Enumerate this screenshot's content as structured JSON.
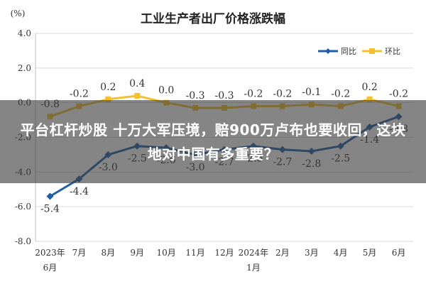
{
  "chart_data": {
    "type": "line",
    "title": "工业生产者出厂价格涨跌幅",
    "unit_label": "(%)",
    "categories": [
      "2023年6月",
      "7月",
      "8月",
      "9月",
      "10月",
      "11月",
      "12月",
      "2024年1月",
      "2月",
      "3月",
      "4月",
      "5月",
      "6月"
    ],
    "y_ticks": [
      "4.0",
      "2.0",
      "0.0",
      "-2.0",
      "-4.0",
      "-6.0",
      "-8.0"
    ],
    "ylim": [
      -8,
      4
    ],
    "grid": true,
    "legend_position": "top-right",
    "series": [
      {
        "name": "同比",
        "color": "#1f5fa8",
        "values": [
          -5.4,
          -4.4,
          -3.0,
          -2.5,
          -2.6,
          -3.0,
          -2.7,
          -2.5,
          -2.7,
          -2.8,
          -2.5,
          -1.4,
          -0.8
        ],
        "labels": [
          "-5.4",
          "-4.4",
          "-3.0",
          "-2.5",
          "-2.6",
          "-3.0",
          "-2.7",
          "-2.5",
          "-2.7",
          "-2.8",
          "-2.5",
          "-1.4",
          "-0.8"
        ]
      },
      {
        "name": "环比",
        "color": "#f2c12e",
        "values": [
          -0.8,
          -0.2,
          0.2,
          0.4,
          0.0,
          -0.3,
          -0.3,
          -0.2,
          -0.2,
          -0.1,
          -0.2,
          0.2,
          -0.2
        ],
        "labels": [
          "-0.8",
          "-0.2",
          "0.2",
          "0.4",
          "0.0",
          "-0.3",
          "-0.3",
          "-0.2",
          "-0.2",
          "-0.1",
          "-0.2",
          "0.2",
          "-0.2"
        ]
      }
    ]
  },
  "overlay": {
    "headline": "平台杠杆炒股 十万大军压境，赔900万卢布也要收回，这块地对中国有多重要？"
  },
  "colors": {
    "grid": "#d9d9d9",
    "axis_text": "#333333",
    "title": "#222222"
  }
}
